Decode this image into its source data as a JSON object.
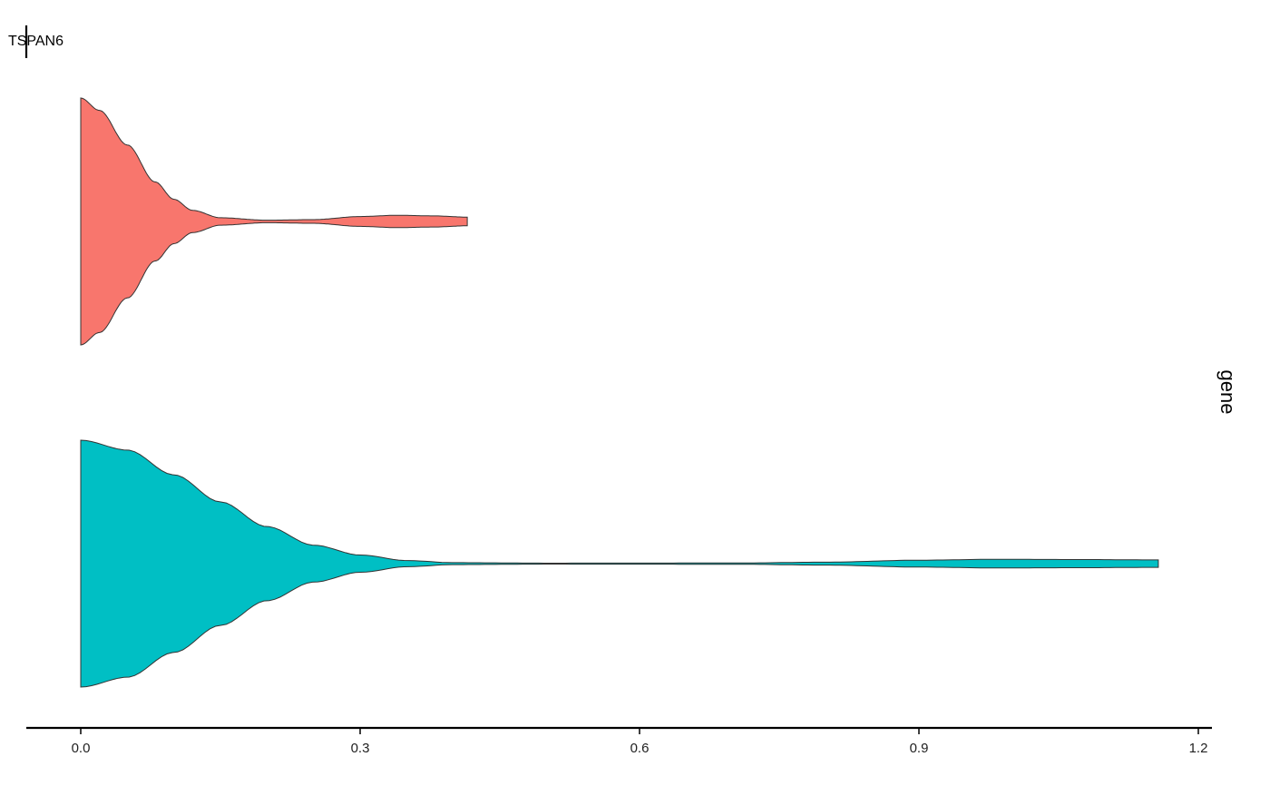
{
  "chart_data": {
    "type": "violin",
    "orientation": "horizontal",
    "title": "",
    "feature_label": "TSPAN6",
    "facet_label": "gene",
    "xlabel": "",
    "ylabel": "",
    "xlim": [
      -0.05,
      1.23
    ],
    "x_ticks": [
      "0.0",
      "0.3",
      "0.6",
      "0.9",
      "1.2"
    ],
    "x_tick_values": [
      0,
      0.3,
      0.6,
      0.9,
      1.2
    ],
    "grid": false,
    "series": [
      {
        "color": "#F8766D",
        "min": 0.0,
        "max": 0.415,
        "density_profile": [
          [
            0,
            1.0
          ],
          [
            0.02,
            0.9
          ],
          [
            0.05,
            0.62
          ],
          [
            0.08,
            0.32
          ],
          [
            0.1,
            0.18
          ],
          [
            0.12,
            0.09
          ],
          [
            0.15,
            0.03
          ],
          [
            0.2,
            0.01
          ],
          [
            0.25,
            0.015
          ],
          [
            0.3,
            0.04
          ],
          [
            0.34,
            0.05
          ],
          [
            0.38,
            0.045
          ],
          [
            0.415,
            0.035
          ]
        ]
      },
      {
        "color": "#00BFC4",
        "min": 0.0,
        "max": 1.157,
        "density_profile": [
          [
            0,
            1.0
          ],
          [
            0.05,
            0.92
          ],
          [
            0.1,
            0.72
          ],
          [
            0.15,
            0.5
          ],
          [
            0.2,
            0.3
          ],
          [
            0.25,
            0.15
          ],
          [
            0.3,
            0.07
          ],
          [
            0.35,
            0.025
          ],
          [
            0.4,
            0.008
          ],
          [
            0.5,
            0.004
          ],
          [
            0.7,
            0.005
          ],
          [
            0.8,
            0.012
          ],
          [
            0.9,
            0.028
          ],
          [
            0.98,
            0.035
          ],
          [
            1.08,
            0.033
          ],
          [
            1.157,
            0.03
          ]
        ]
      }
    ]
  }
}
